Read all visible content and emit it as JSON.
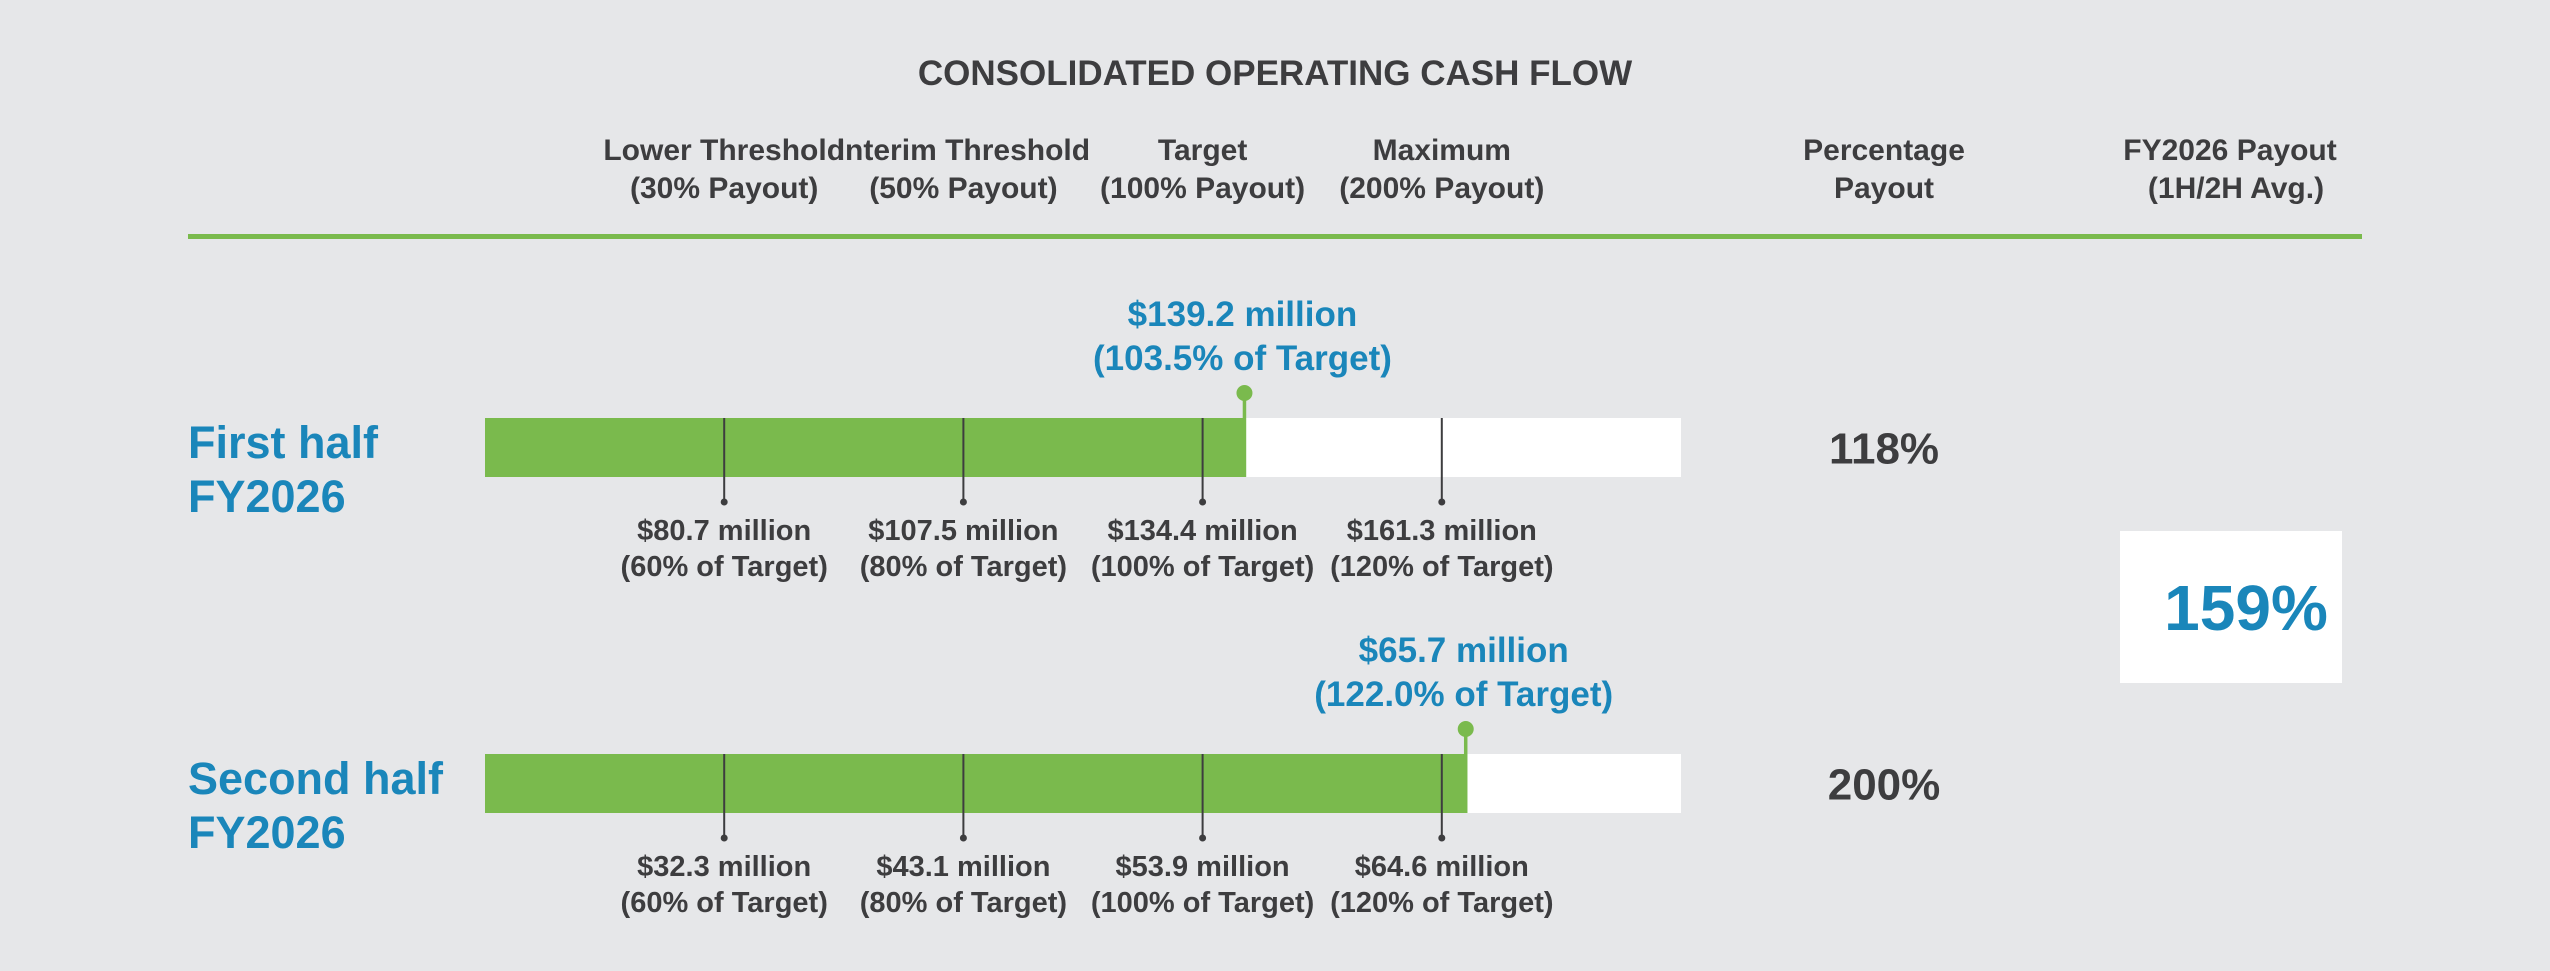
{
  "colors": {
    "accent_green": "#7aba4d",
    "accent_blue": "#1a86ba",
    "text_dark": "#3d3d3f",
    "bar_bg": "#ffffff",
    "page_bg": "#e6e7e9"
  },
  "chart_data": {
    "type": "bar",
    "title": "CONSOLIDATED OPERATING CASH FLOW",
    "threshold_headers": [
      [
        "Lower Threshold",
        "(30% Payout)"
      ],
      [
        "Interim Threshold",
        "(50% Payout)"
      ],
      [
        "Target",
        "(100% Payout)"
      ],
      [
        "Maximum",
        "(200% Payout)"
      ]
    ],
    "percentage_header": [
      "Percentage",
      "Payout"
    ],
    "fy_payout_header": [
      "FY2026 Payout",
      "(1H/2H Avg.)"
    ],
    "scale": {
      "min_pct_of_target": 40,
      "max_pct_of_target": 140,
      "unit": "% of Target"
    },
    "rows": [
      {
        "label": [
          "First half",
          "FY2026"
        ],
        "actual_pct_of_target": 103.5,
        "actual_label": [
          "$139.2 million",
          "(103.5% of Target)"
        ],
        "thresholds": [
          {
            "pct_of_target": 60,
            "label": [
              "$80.7 million",
              "(60% of Target)"
            ]
          },
          {
            "pct_of_target": 80,
            "label": [
              "$107.5 million",
              "(80% of Target)"
            ]
          },
          {
            "pct_of_target": 100,
            "label": [
              "$134.4 million",
              "(100% of Target)"
            ]
          },
          {
            "pct_of_target": 120,
            "label": [
              "$161.3 million",
              "(120% of Target)"
            ]
          }
        ],
        "percentage_payout": "118%"
      },
      {
        "label": [
          "Second half",
          "FY2026"
        ],
        "actual_pct_of_target": 122.0,
        "actual_label": [
          "$65.7 million",
          "(122.0% of Target)"
        ],
        "thresholds": [
          {
            "pct_of_target": 60,
            "label": [
              "$32.3 million",
              "(60% of Target)"
            ]
          },
          {
            "pct_of_target": 80,
            "label": [
              "$43.1 million",
              "(80% of Target)"
            ]
          },
          {
            "pct_of_target": 100,
            "label": [
              "$53.9 million",
              "(100% of Target)"
            ]
          },
          {
            "pct_of_target": 120,
            "label": [
              "$64.6 million",
              "(120% of Target)"
            ]
          }
        ],
        "percentage_payout": "200%"
      }
    ],
    "fy_payout": "159%"
  }
}
